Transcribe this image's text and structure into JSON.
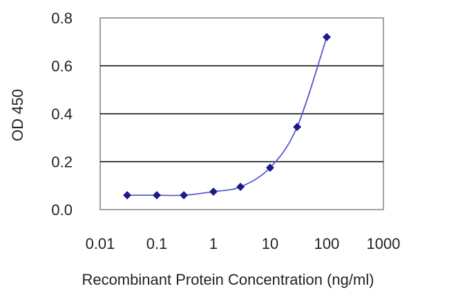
{
  "chart_data": {
    "type": "line",
    "title": "",
    "xlabel": "Recombinant Protein Concentration (ng/ml)",
    "ylabel": "OD 450",
    "x_scale": "log",
    "xlim": [
      0.01,
      1000
    ],
    "ylim": [
      0.0,
      0.8
    ],
    "x_ticks": [
      0.01,
      0.1,
      1,
      10,
      100,
      1000
    ],
    "x_tick_labels": [
      "0.01",
      "0.1",
      "1",
      "10",
      "100",
      "1000"
    ],
    "y_ticks": [
      0.0,
      0.2,
      0.4,
      0.6,
      0.8
    ],
    "y_tick_labels": [
      "0.0",
      "0.2",
      "0.4",
      "0.6",
      "0.8"
    ],
    "grid": "horizontal",
    "legend": "none",
    "series": [
      {
        "x": [
          0.03,
          0.1,
          0.3,
          1,
          3,
          10,
          30,
          100
        ],
        "y": [
          0.06,
          0.06,
          0.06,
          0.075,
          0.095,
          0.175,
          0.345,
          0.72
        ],
        "marker": "diamond",
        "color": "#1a1a8c"
      }
    ],
    "colors": {
      "plot_background": "#ffffff",
      "plot_border": "#808080",
      "gridline": "#000000",
      "series_line": "#5a5ad0",
      "marker": "#1a1a8c"
    }
  }
}
